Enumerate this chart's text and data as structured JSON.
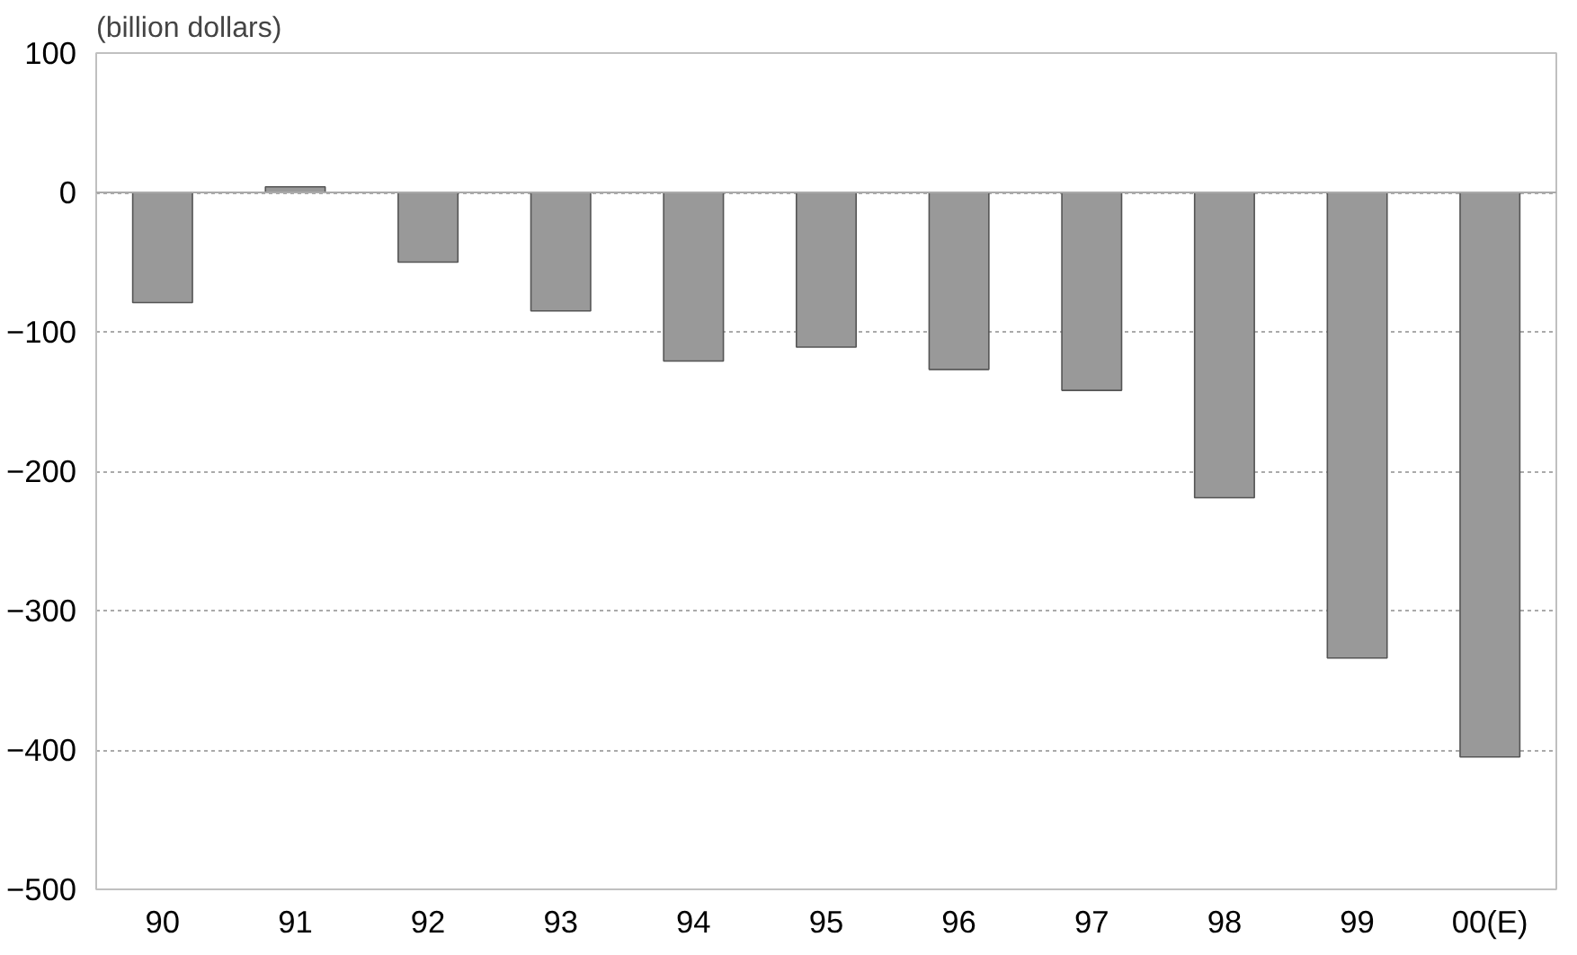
{
  "chart_data": {
    "type": "bar",
    "ylabel": "(billion dollars)",
    "categories": [
      "90",
      "91",
      "92",
      "93",
      "94",
      "95",
      "96",
      "97",
      "98",
      "99",
      "00(E)"
    ],
    "values": [
      -79,
      4,
      -50,
      -85,
      -121,
      -111,
      -127,
      -142,
      -219,
      -334,
      -405
    ],
    "color": "#999999",
    "ylim": [
      -500,
      100
    ],
    "yticks": [
      -500,
      -400,
      -300,
      -200,
      -100,
      0,
      100
    ],
    "grid": "y"
  }
}
